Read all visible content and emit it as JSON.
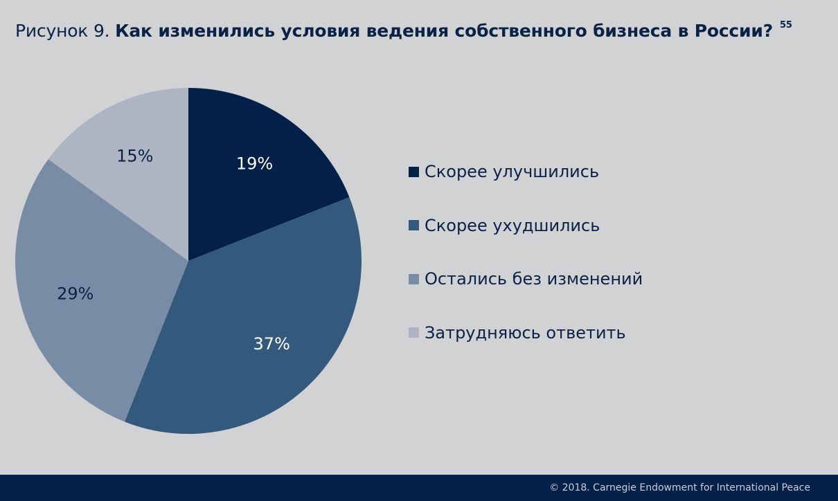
{
  "header": {
    "title_prefix": "Рисунок 9. ",
    "title_main": "Как изменились условия ведения собственного бизнеса в России?",
    "footnote": "55"
  },
  "chart_data": {
    "type": "pie",
    "title": "Как изменились условия ведения собственного бизнеса в России?",
    "series": [
      {
        "name": "Скорее улучшились",
        "value": 19,
        "label": "19%",
        "color": "#022048",
        "label_color": "#ffffff"
      },
      {
        "name": "Скорее ухудшились",
        "value": 37,
        "label": "37%",
        "color": "#33597c",
        "label_color": "#ffffff"
      },
      {
        "name": "Остались без изменений",
        "value": 29,
        "label": "29%",
        "color": "#788ca5",
        "label_color": "#0a2245"
      },
      {
        "name": "Затрудняюсь ответить",
        "value": 15,
        "label": "15%",
        "color": "#adb4c2",
        "label_color": "#0a2245"
      }
    ],
    "legend_position": "right"
  },
  "footer": {
    "copyright": "© 2018. Carnegie Endowment for International Peace"
  }
}
